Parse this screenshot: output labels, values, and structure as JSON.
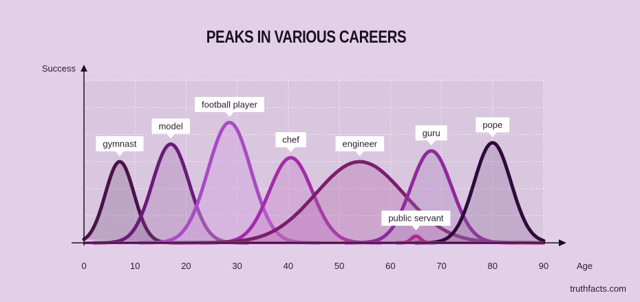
{
  "chart_data": {
    "type": "line",
    "title": "PEAKS IN VARIOUS CAREERS",
    "xlabel": "Age",
    "ylabel": "Success",
    "xlim": [
      0,
      90
    ],
    "ylim": [
      0,
      6
    ],
    "xticks": [
      0,
      10,
      20,
      30,
      40,
      50,
      60,
      70,
      80,
      90
    ],
    "grid": true,
    "series": [
      {
        "name": "gymnast",
        "peak_age": 7,
        "peak_success": 3.0,
        "width": 2.8,
        "color": "#4a1248",
        "fill": "rgba(120,80,130,0.28)"
      },
      {
        "name": "model",
        "peak_age": 17,
        "peak_success": 3.65,
        "width": 3.6,
        "color": "#6a1a7a",
        "fill": "rgba(150,90,160,0.25)"
      },
      {
        "name": "football player",
        "peak_age": 28.5,
        "peak_success": 4.45,
        "width": 4.2,
        "color": "#a84bc4",
        "fill": "rgba(210,160,225,0.45)"
      },
      {
        "name": "chef",
        "peak_age": 40.5,
        "peak_success": 3.15,
        "width": 4.2,
        "color": "#a22ca8",
        "fill": "rgba(200,120,200,0.35)"
      },
      {
        "name": "engineer",
        "peak_age": 54,
        "peak_success": 3.0,
        "width": 8.6,
        "color": "#7a1e6a",
        "fill": "rgba(180,100,170,0.32)"
      },
      {
        "name": "guru",
        "peak_age": 68,
        "peak_success": 3.4,
        "width": 4.0,
        "color": "#8e2a9c",
        "fill": "rgba(170,120,190,0.30)"
      },
      {
        "name": "pope",
        "peak_age": 80,
        "peak_success": 3.7,
        "width": 3.6,
        "color": "#2e0a3a",
        "fill": "rgba(140,100,150,0.28)"
      },
      {
        "name": "public servant",
        "peak_age": 65,
        "peak_success": 0.25,
        "width": 0.9,
        "color": "#b0288e",
        "fill": "rgba(180,40,140,0.3)"
      }
    ]
  },
  "credit": "truthfacts.com"
}
